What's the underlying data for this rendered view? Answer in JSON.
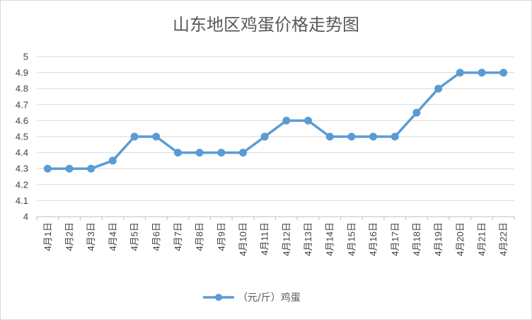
{
  "chart_data": {
    "type": "line",
    "title": "山东地区鸡蛋价格走势图",
    "categories": [
      "4月1日",
      "4月2日",
      "4月3日",
      "4月4日",
      "4月5日",
      "4月6日",
      "4月7日",
      "4月8日",
      "4月9日",
      "4月10日",
      "4月11日",
      "4月12日",
      "4月13日",
      "4月14日",
      "4月15日",
      "4月16日",
      "4月17日",
      "4月18日",
      "4月19日",
      "4月20日",
      "4月21日",
      "4月22日"
    ],
    "series": [
      {
        "name": "（元/斤）鸡蛋",
        "values": [
          4.3,
          4.3,
          4.3,
          4.35,
          4.5,
          4.5,
          4.4,
          4.4,
          4.4,
          4.4,
          4.5,
          4.6,
          4.6,
          4.5,
          4.5,
          4.5,
          4.5,
          4.65,
          4.8,
          4.9,
          4.9,
          4.9
        ],
        "color": "#5b9bd5"
      }
    ],
    "ylim": [
      4,
      5
    ],
    "yticks": [
      "4",
      "4.1",
      "4.2",
      "4.3",
      "4.4",
      "4.5",
      "4.6",
      "4.7",
      "4.8",
      "4.9",
      "5"
    ],
    "xlabel": "",
    "ylabel": "",
    "grid": true,
    "legend_position": "bottom",
    "gridline_color": "#d9d9d9",
    "axis_color": "#bfbfbf"
  }
}
